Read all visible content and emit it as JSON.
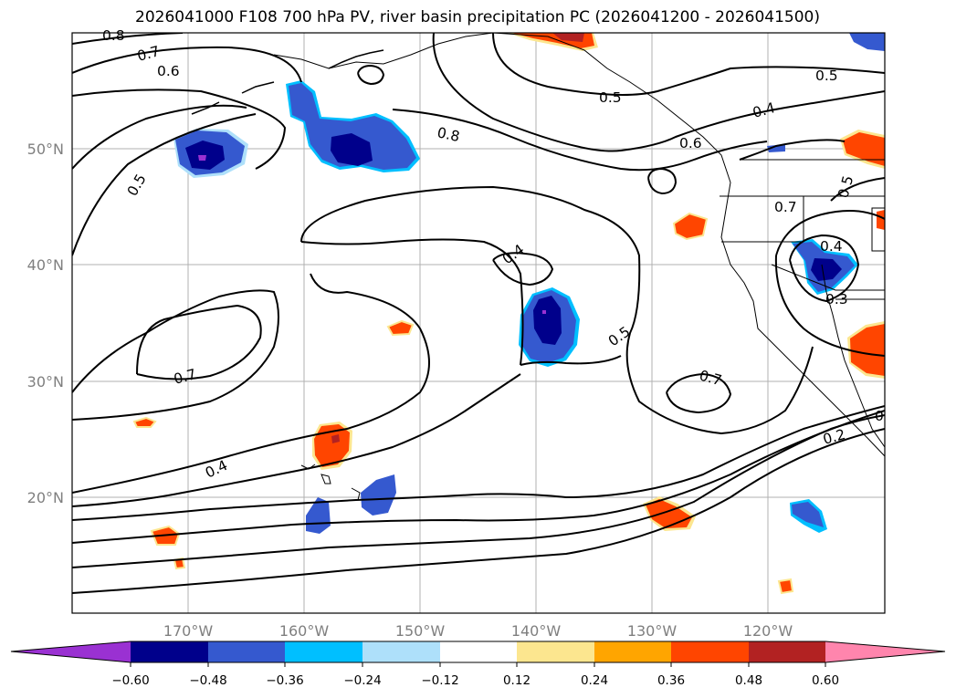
{
  "title": "2026041000 F108 700 hPa PV, river basin precipitation PC (2026041200 - 2026041500)",
  "map": {
    "lon_range": [
      -180,
      -110
    ],
    "lat_range": [
      10,
      60
    ],
    "lon_ticks": [
      {
        "value": -170,
        "label": "170°W"
      },
      {
        "value": -160,
        "label": "160°W"
      },
      {
        "value": -150,
        "label": "150°W"
      },
      {
        "value": -140,
        "label": "140°W"
      },
      {
        "value": -130,
        "label": "130°W"
      },
      {
        "value": -120,
        "label": "120°W"
      }
    ],
    "lat_ticks": [
      {
        "value": 50,
        "label": "50°N"
      },
      {
        "value": 40,
        "label": "40°N"
      },
      {
        "value": 30,
        "label": "30°N"
      },
      {
        "value": 20,
        "label": "20°N"
      }
    ],
    "grid": true
  },
  "contour_labels": [
    "0.8",
    "0.7",
    "0.6",
    "0.5",
    "0.8",
    "0.5",
    "0.4",
    "0.5",
    "0.6",
    "0.7",
    "0.5",
    "0.4",
    "0.3",
    "0.4",
    "0.5",
    "0.7",
    "0.7",
    "0.4",
    "0.2",
    "0"
  ],
  "colorbar": {
    "colors": [
      "#9a31d2",
      "#00008b",
      "#3559cf",
      "#00bfff",
      "#aee0fa",
      "#ffffff",
      "#fce68f",
      "#ffa500",
      "#ff4500",
      "#b22222",
      "#ff85ad"
    ],
    "tick_labels": [
      "−0.60",
      "−0.48",
      "−0.36",
      "−0.24",
      "−0.12",
      "0.12",
      "0.24",
      "0.36",
      "0.48",
      "0.60"
    ]
  },
  "colors": {
    "frame": "#000000",
    "grid": "#b0b0b0",
    "axis_label": "#7f7f7f",
    "contour": "#000000",
    "coast": "#000000"
  }
}
